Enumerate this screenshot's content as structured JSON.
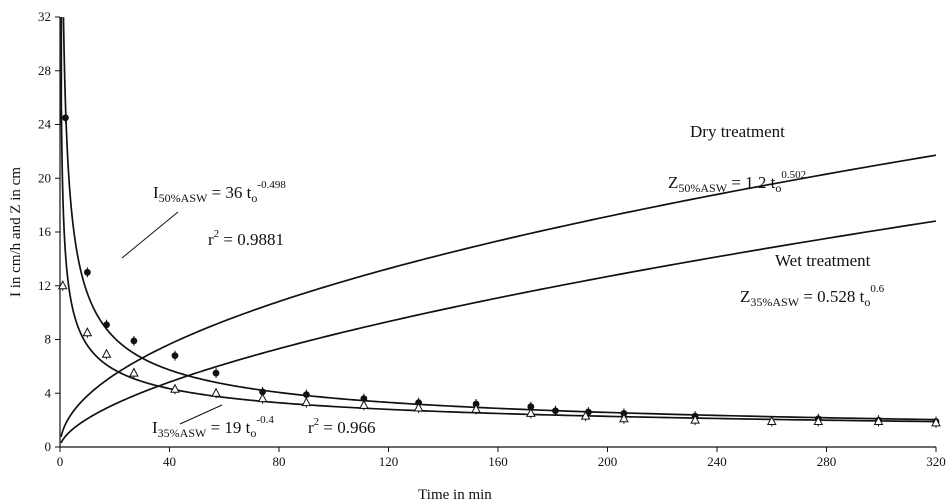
{
  "chart_data": {
    "type": "scatter",
    "xlabel": "Time in min",
    "ylabel": "I in cm/h and Z in cm",
    "xlim": [
      0,
      320
    ],
    "ylim": [
      0,
      32
    ],
    "x_ticks": [
      "0",
      "40",
      "80",
      "120",
      "160",
      "200",
      "240",
      "280",
      "320"
    ],
    "y_ticks": [
      "0",
      "4",
      "8",
      "12",
      "16",
      "20",
      "24",
      "28",
      "32"
    ],
    "grid": false,
    "series": [
      {
        "kind": "points",
        "marker": "circle",
        "x": [
          2,
          10,
          17,
          27,
          42,
          57,
          74,
          90,
          111,
          131,
          152,
          172,
          181,
          193,
          206,
          232,
          277,
          299,
          320
        ],
        "y": [
          24.5,
          13.0,
          9.1,
          7.9,
          6.8,
          5.5,
          4.1,
          3.9,
          3.6,
          3.3,
          3.2,
          3.0,
          2.7,
          2.6,
          2.5,
          2.3,
          2.1,
          2.0,
          1.9
        ]
      },
      {
        "kind": "points",
        "marker": "triangle",
        "x": [
          1,
          10,
          17,
          27,
          42,
          57,
          74,
          90,
          111,
          131,
          152,
          172,
          192,
          206,
          232,
          260,
          277,
          299,
          320
        ],
        "y": [
          12.0,
          8.5,
          6.9,
          5.5,
          4.3,
          4.0,
          3.6,
          3.3,
          3.1,
          2.9,
          2.8,
          2.5,
          2.3,
          2.1,
          2.0,
          1.9,
          1.9,
          1.9,
          1.8
        ]
      },
      {
        "kind": "fit",
        "equation": {
          "base": "I",
          "subscript": "50%ASW",
          "rhs": " = 36 t",
          "t_sub": "o",
          "exponent": "-0.498"
        },
        "r2": {
          "lhs": "r",
          "exp": "2",
          "rhs": " = 0.9881"
        },
        "coef": 36,
        "power": -0.498
      },
      {
        "kind": "fit",
        "equation": {
          "base": "I",
          "subscript": "35%ASW",
          "rhs": " = 19 t",
          "t_sub": "o",
          "exponent": "-0.4"
        },
        "r2": {
          "lhs": "r",
          "exp": "2",
          "rhs": " = 0.966"
        },
        "coef": 19,
        "power": -0.4
      },
      {
        "kind": "fit",
        "name": "Dry treatment",
        "equation": {
          "base": "Z",
          "subscript": "50%ASW",
          "rhs": " = 1.2 t",
          "t_sub": "o",
          "exponent": "0.502"
        },
        "coef": 1.2,
        "power": 0.502
      },
      {
        "kind": "fit",
        "name": "Wet treatment",
        "equation": {
          "base": "Z",
          "subscript": "35%ASW",
          "rhs": " = 0.528 t",
          "t_sub": "o",
          "exponent": "0.6"
        },
        "coef": 0.528,
        "power": 0.6
      }
    ]
  }
}
